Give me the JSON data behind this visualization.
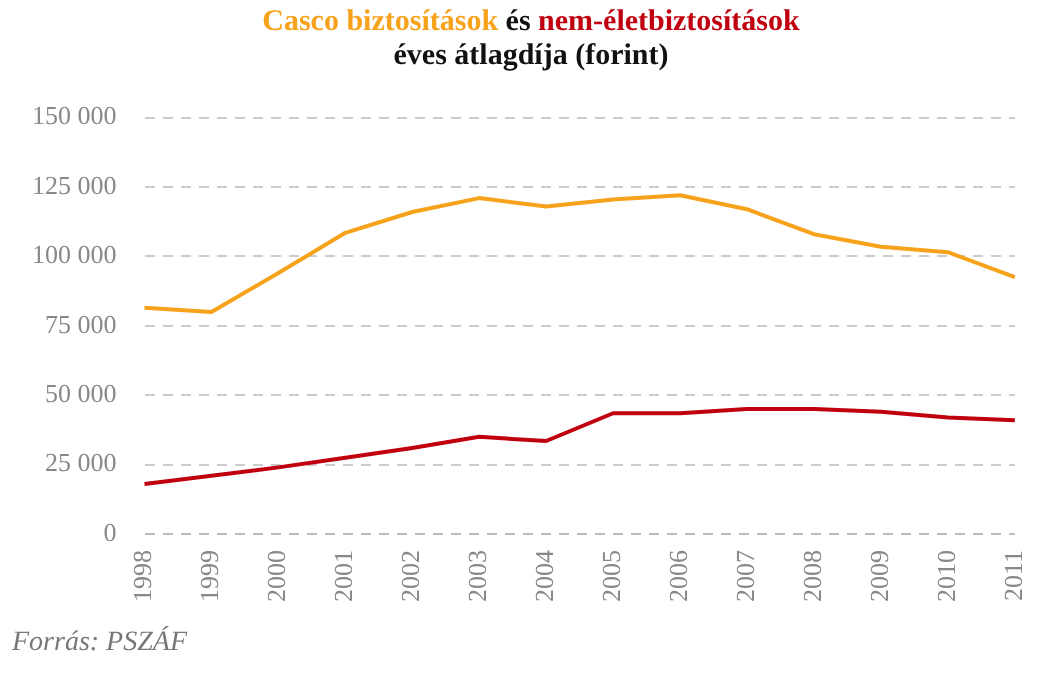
{
  "chart_data": {
    "type": "line",
    "title": "és",
    "subtitle": "éves átlagdíja (forint)",
    "categories": [
      "1998",
      "1999",
      "2000",
      "2001",
      "2002",
      "2003",
      "2004",
      "2005",
      "2006",
      "2007",
      "2008",
      "2009",
      "2010",
      "2011"
    ],
    "series": [
      {
        "name": "Casco biztosítások",
        "color": "#f7a21b",
        "values": [
          81500,
          80000,
          94000,
          108500,
          116000,
          121000,
          118000,
          120500,
          122000,
          117000,
          108000,
          103500,
          101500,
          92500
        ]
      },
      {
        "name": "nem-életbiztosítások",
        "color": "#c0000f",
        "values": [
          18000,
          21000,
          24000,
          27500,
          31000,
          35000,
          33500,
          43500,
          43500,
          45000,
          45000,
          44000,
          42000,
          41000
        ]
      }
    ],
    "ylim": [
      0,
      150000
    ],
    "yticks": [
      {
        "value": 0,
        "label": "0"
      },
      {
        "value": 25000,
        "label": "25 000"
      },
      {
        "value": 50000,
        "label": "50 000"
      },
      {
        "value": 75000,
        "label": "75 000"
      },
      {
        "value": 100000,
        "label": "100 000"
      },
      {
        "value": 125000,
        "label": "125 000"
      },
      {
        "value": 150000,
        "label": "150 000"
      }
    ],
    "grid": "y",
    "marker": "none",
    "line_style": "solid",
    "legend": false,
    "annotations": [
      "Forrás: PSZÁF"
    ]
  }
}
